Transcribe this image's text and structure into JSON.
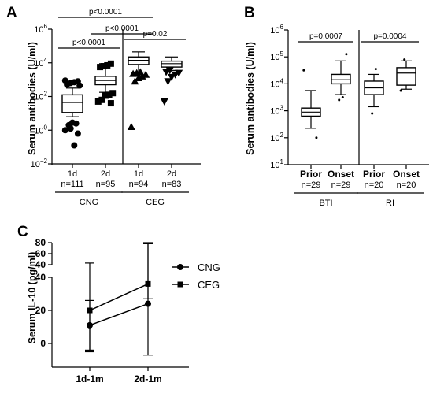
{
  "panels": {
    "a": "A",
    "b": "B",
    "c": "C"
  },
  "chart_data": [
    {
      "type": "box",
      "panel": "A",
      "ylabel": "Serum antibodies (U/ml)",
      "yscale": "log10",
      "ylim_exp": [
        -2,
        6
      ],
      "ytick_exps": [
        -2,
        0,
        2,
        4,
        6
      ],
      "groups": [
        "CNG",
        "CEG"
      ],
      "categories": [
        {
          "label": "1d",
          "n": "n=111",
          "group": "CNG",
          "marker": "circle",
          "box": {
            "whislo": 0.8,
            "q1": 1.05,
            "med": 1.65,
            "q3": 2.1,
            "whishi": 2.5
          },
          "outliers": [
            2.95,
            2.9,
            2.85,
            2.8,
            2.7,
            2.65,
            0.4,
            0.45,
            0.3,
            0.0,
            -0.2,
            -0.9,
            0.1
          ]
        },
        {
          "label": "2d",
          "n": "n=95",
          "group": "CNG",
          "marker": "square",
          "box": {
            "whislo": 2.25,
            "q1": 2.7,
            "med": 2.95,
            "q3": 3.2,
            "whishi": 3.95
          },
          "outliers": [
            3.95,
            3.85,
            3.8,
            3.75,
            2.2,
            2.1,
            2.05,
            1.8,
            1.7,
            1.6
          ]
        },
        {
          "label": "1d",
          "n": "n=94",
          "group": "CEG",
          "marker": "triangle-up",
          "box": {
            "whislo": 3.45,
            "q1": 3.9,
            "med": 4.15,
            "q3": 4.35,
            "whishi": 4.65
          },
          "outliers": [
            3.45,
            3.4,
            3.35,
            3.3,
            3.2,
            3.1,
            2.9,
            0.2
          ]
        },
        {
          "label": "2d",
          "n": "n=83",
          "group": "CEG",
          "marker": "triangle-down",
          "box": {
            "whislo": 3.55,
            "q1": 3.75,
            "med": 3.95,
            "q3": 4.1,
            "whishi": 4.35
          },
          "outliers": [
            3.55,
            3.45,
            3.4,
            3.3,
            3.15,
            2.9,
            1.7
          ]
        }
      ],
      "comparisons": [
        {
          "from": 0,
          "to": 1,
          "label": "p<0.0001"
        },
        {
          "from": 1,
          "to": 2,
          "label": "p<0.0001"
        },
        {
          "from": 2,
          "to": 3,
          "label": "p=0.02"
        },
        {
          "from": 0,
          "to": 2,
          "label": "p<0.0001"
        }
      ]
    },
    {
      "type": "box",
      "panel": "B",
      "ylabel": "Serum antibodies (U/ml)",
      "yscale": "log10",
      "ylim_exp": [
        1,
        6
      ],
      "ytick_exps": [
        1,
        2,
        3,
        4,
        5,
        6
      ],
      "groups": [
        "BTI",
        "RI"
      ],
      "categories": [
        {
          "label": "Prior",
          "n": "n=29",
          "group": "BTI",
          "box": {
            "whislo": 2.35,
            "q1": 2.8,
            "med": 2.95,
            "q3": 3.1,
            "whishi": 3.75
          },
          "outliers": [
            4.5,
            2.0
          ]
        },
        {
          "label": "Onset",
          "n": "n=29",
          "group": "BTI",
          "box": {
            "whislo": 3.6,
            "q1": 4.0,
            "med": 4.15,
            "q3": 4.35,
            "whishi": 4.85
          },
          "outliers": [
            5.1,
            3.5,
            3.4
          ]
        },
        {
          "label": "Prior",
          "n": "n=20",
          "group": "RI",
          "box": {
            "whislo": 3.15,
            "q1": 3.6,
            "med": 3.85,
            "q3": 4.1,
            "whishi": 4.35
          },
          "outliers": [
            4.55,
            2.9
          ]
        },
        {
          "label": "Onset",
          "n": "n=20",
          "group": "RI",
          "box": {
            "whislo": 3.8,
            "q1": 3.95,
            "med": 4.4,
            "q3": 4.6,
            "whishi": 4.85
          },
          "outliers": [
            4.9,
            3.75
          ]
        }
      ],
      "comparisons": [
        {
          "from": 0,
          "to": 1,
          "label": "p=0.0007"
        },
        {
          "from": 2,
          "to": 3,
          "label": "p=0.0004"
        }
      ]
    },
    {
      "type": "line",
      "panel": "C",
      "ylabel": "Serum IL-10 (pg/ml)",
      "categories": [
        "1d-1m",
        "2d-1m"
      ],
      "ytick_labels": [
        "0",
        "20",
        "40",
        "40",
        "60",
        "80"
      ],
      "y_break": [
        42,
        38
      ],
      "series": [
        {
          "name": "CNG",
          "marker": "circle",
          "values": [
            11,
            24
          ],
          "err_low": [
            -4,
            -7
          ],
          "err_high": [
            26,
            80
          ]
        },
        {
          "name": "CEG",
          "marker": "square",
          "values": [
            20,
            36
          ],
          "err_low": [
            -5,
            27
          ],
          "err_high": [
            43,
            78
          ]
        }
      ]
    }
  ]
}
